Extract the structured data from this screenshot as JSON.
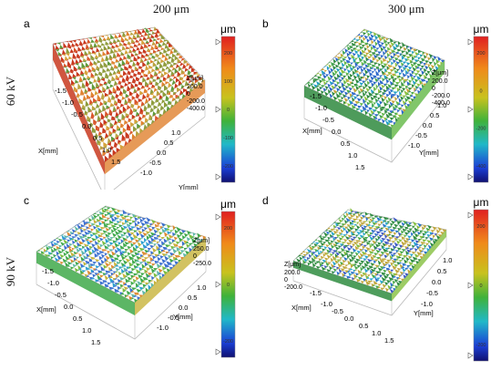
{
  "columns": [
    "200 μm",
    "300 μm"
  ],
  "rows": [
    "60 kV",
    "90 kV"
  ],
  "panels": [
    {
      "label": "a",
      "zlabel": "Z[μm]",
      "zticks": [
        "200.0",
        "0",
        "-200.0",
        "-400.0"
      ],
      "xlabel": "X[mm]",
      "xticks": [
        "-1.5",
        "-1.0",
        "-0.5",
        "0.0",
        "0.5",
        "1.0",
        "1.5"
      ],
      "ylabel": "Y[mm]",
      "yticks": [
        "1.0",
        "0.5",
        "0.0",
        "-0.5",
        "-1.0"
      ],
      "unit": "μm",
      "cbticks": [
        "200",
        "100",
        "0",
        "-100",
        "-200"
      ],
      "palette": [
        "#c8381e",
        "#d8542a",
        "#e0812e",
        "#d5a23a",
        "#b9a23e",
        "#8e9c3c",
        "#5f9a3a"
      ],
      "bias": 0.72
    },
    {
      "label": "b",
      "zlabel": "Z[μm]",
      "zticks": [
        "200.0",
        "0",
        "-200.0",
        "-400.0"
      ],
      "xlabel": "X[mm]",
      "xticks": [
        "-1.5",
        "-1.0",
        "-0.5",
        "0.0",
        "0.5",
        "1.0",
        "1.5"
      ],
      "ylabel": "Y[mm]",
      "yticks": [
        "1.0",
        "0.5",
        "0.0",
        "-0.5",
        "-1.0"
      ],
      "unit": "μm",
      "cbticks": [
        "200",
        "0",
        "-200",
        "-400"
      ],
      "palette": [
        "#2f8a3e",
        "#3fa54a",
        "#62b845",
        "#8fc13c",
        "#1f9ec4",
        "#2a66c9",
        "#c9a236"
      ],
      "bias": 0.5
    },
    {
      "label": "c",
      "zlabel": "Z[μm]",
      "zticks": [
        "250.0",
        "0",
        "-250.0"
      ],
      "xlabel": "X[mm]",
      "xticks": [
        "-1.5",
        "-1.0",
        "-0.5",
        "0.0",
        "0.5",
        "1.0",
        "1.5"
      ],
      "ylabel": "Y[mm]",
      "yticks": [
        "1.0",
        "0.5",
        "0.0",
        "-0.5",
        "-1.0"
      ],
      "unit": "μm",
      "cbticks": [
        "200",
        "0",
        "-200"
      ],
      "palette": [
        "#3fa94a",
        "#7dbd3f",
        "#c7b33a",
        "#de8a32",
        "#2a9fd0",
        "#3b6fd0",
        "#5fb8a8"
      ],
      "bias": 0.5
    },
    {
      "label": "d",
      "zlabel": "Z[μm]",
      "zticks": [
        "200.0",
        "0",
        "-200.0"
      ],
      "xlabel": "X[mm]",
      "xticks": [
        "-1.5",
        "-1.0",
        "-0.5",
        "0.0",
        "0.5",
        "1.0",
        "1.5"
      ],
      "ylabel": "Y[mm]",
      "yticks": [
        "1.0",
        "0.5",
        "0.0",
        "-0.5",
        "-1.0"
      ],
      "unit": "μm",
      "cbticks": [
        "200",
        "0",
        "-200"
      ],
      "palette": [
        "#2f8c40",
        "#4bab48",
        "#84bf3e",
        "#2a73cc",
        "#27a6cf",
        "#c0a63a",
        "#3c58c4"
      ],
      "bias": 0.5
    }
  ]
}
